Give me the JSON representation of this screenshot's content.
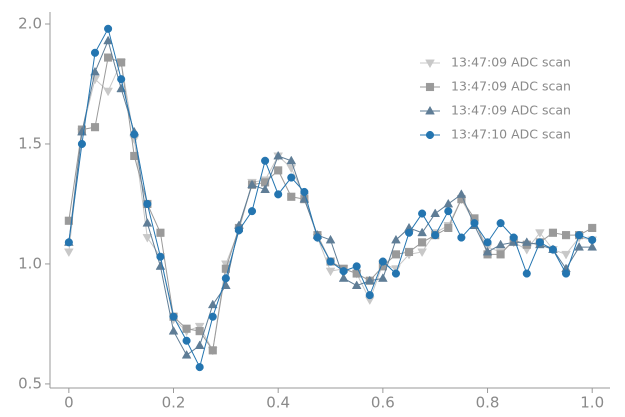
{
  "chart_data": {
    "type": "line",
    "x": [
      0,
      0.025,
      0.05,
      0.075,
      0.1,
      0.125,
      0.15,
      0.175,
      0.2,
      0.225,
      0.25,
      0.275,
      0.3,
      0.325,
      0.35,
      0.375,
      0.4,
      0.425,
      0.45,
      0.475,
      0.5,
      0.525,
      0.55,
      0.575,
      0.6,
      0.625,
      0.65,
      0.675,
      0.7,
      0.725,
      0.75,
      0.775,
      0.8,
      0.825,
      0.85,
      0.875,
      0.9,
      0.925,
      0.95,
      0.975,
      1
    ],
    "series": [
      {
        "name": "13:47:09 ADC scan",
        "color": "#c8c8c8",
        "marker": "triangle-down",
        "values": [
          1.05,
          1.55,
          1.77,
          1.72,
          1.84,
          1.52,
          1.11,
          1.03,
          0.77,
          0.72,
          0.74,
          0.64,
          1.0,
          1.14,
          1.34,
          1.35,
          1.45,
          1.4,
          1.28,
          1.11,
          0.97,
          0.98,
          0.96,
          0.85,
          1.0,
          0.98,
          1.04,
          1.05,
          1.13,
          1.16,
          1.27,
          1.17,
          1.07,
          1.05,
          1.09,
          1.06,
          1.13,
          1.06,
          1.04,
          1.11,
          1.1
        ]
      },
      {
        "name": "13:47:09 ADC scan",
        "color": "#9a9a9a",
        "marker": "square",
        "values": [
          1.18,
          1.56,
          1.57,
          1.86,
          1.84,
          1.45,
          1.25,
          1.13,
          0.78,
          0.73,
          0.72,
          0.64,
          0.98,
          1.15,
          1.33,
          1.34,
          1.39,
          1.28,
          1.27,
          1.12,
          1.01,
          0.98,
          0.96,
          0.93,
          0.99,
          1.04,
          1.05,
          1.09,
          1.12,
          1.15,
          1.27,
          1.19,
          1.04,
          1.04,
          1.1,
          1.08,
          1.09,
          1.13,
          1.12,
          1.12,
          1.15
        ]
      },
      {
        "name": "13:47:09 ADC scan",
        "color": "#5f7d96",
        "marker": "triangle",
        "values": [
          1.09,
          1.55,
          1.8,
          1.93,
          1.73,
          1.55,
          1.17,
          0.99,
          0.72,
          0.62,
          0.66,
          0.83,
          0.91,
          1.16,
          1.33,
          1.31,
          1.45,
          1.43,
          1.27,
          1.12,
          1.1,
          0.94,
          0.91,
          0.93,
          0.94,
          1.1,
          1.15,
          1.13,
          1.21,
          1.25,
          1.29,
          1.16,
          1.05,
          1.08,
          1.09,
          1.09,
          1.08,
          1.06,
          0.98,
          1.07,
          1.07
        ]
      },
      {
        "name": "13:47:10 ADC scan",
        "color": "#2475b0",
        "marker": "circle",
        "values": [
          1.09,
          1.5,
          1.88,
          1.98,
          1.77,
          1.54,
          1.25,
          1.03,
          0.78,
          0.68,
          0.57,
          0.78,
          0.94,
          1.14,
          1.22,
          1.43,
          1.29,
          1.36,
          1.3,
          1.11,
          1.01,
          0.97,
          0.99,
          0.87,
          1.01,
          0.96,
          1.13,
          1.21,
          1.12,
          1.22,
          1.11,
          1.17,
          1.09,
          1.17,
          1.11,
          0.96,
          1.09,
          1.06,
          0.96,
          1.12,
          1.1
        ]
      }
    ],
    "xlim": [
      -0.036,
      1.034
    ],
    "ylim": [
      0.483,
      2.05
    ],
    "xticks": [
      0,
      0.2,
      0.4,
      0.6,
      0.8,
      {
        "value": 1,
        "label": "1.0"
      }
    ],
    "yticks": [
      {
        "value": 0.5,
        "label": "0.5"
      },
      {
        "value": 1,
        "label": "1.0"
      },
      {
        "value": 1.5,
        "label": "1.5"
      },
      {
        "value": 2,
        "label": "2.0"
      }
    ],
    "legend": "upper right"
  }
}
